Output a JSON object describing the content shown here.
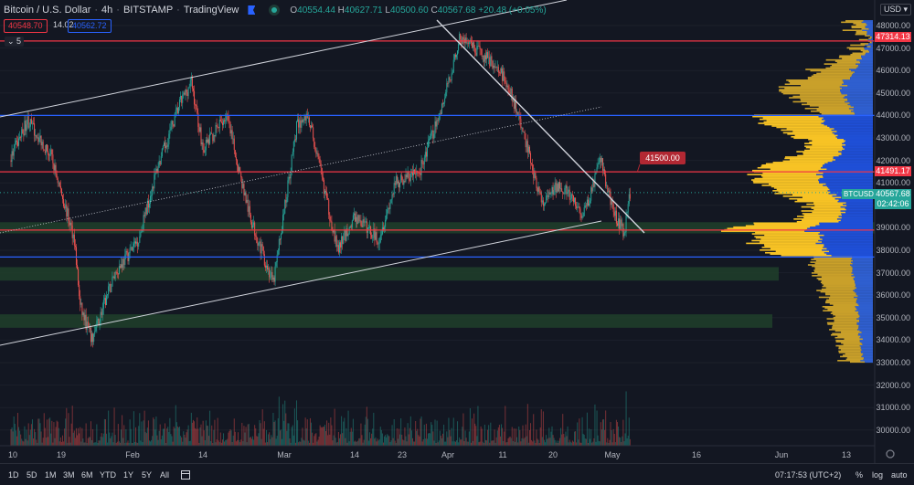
{
  "header": {
    "symbol": "Bitcoin / U.S. Dollar",
    "interval": "4h",
    "exchange": "BITSTAMP",
    "source": "TradingView",
    "ohlc": {
      "o_label": "O",
      "o": "40554.44",
      "h_label": "H",
      "h": "40627.71",
      "l_label": "L",
      "l": "40500.60",
      "c_label": "C",
      "c": "40567.68",
      "change": "+20.48 (+0.05%)"
    },
    "sell_price": "40548.70",
    "spread": "14.02",
    "buy_price": "40562.72",
    "indicators_collapse": "⌄ 5"
  },
  "price_axis": {
    "currency": "USD ▾",
    "labels": [
      "48000.00",
      "47000.00",
      "46000.00",
      "45000.00",
      "44000.00",
      "43000.00",
      "42000.00",
      "41000.00",
      "39000.00",
      "38000.00",
      "37000.00",
      "36000.00",
      "35000.00",
      "34000.00",
      "33000.00",
      "32000.00",
      "31000.00",
      "30000.00"
    ],
    "tags": {
      "resistance_top": "47314.13",
      "resistance_mid": "41491.17",
      "last_price": "40567.68",
      "countdown": "02:42:06"
    },
    "symbol_tag": "BTCUSD"
  },
  "annotation": {
    "target_label": "41500.00"
  },
  "time_axis": [
    "10",
    "19",
    "Feb",
    "14",
    "Mar",
    "14",
    "23",
    "Apr",
    "11",
    "20",
    "May",
    "16",
    "Jun",
    "13"
  ],
  "bottom_bar": {
    "ranges": [
      "1D",
      "5D",
      "1M",
      "3M",
      "6M",
      "YTD",
      "1Y",
      "5Y",
      "All"
    ],
    "clock": "07:17:53 (UTC+2)",
    "percent": "%",
    "log": "log",
    "auto": "auto"
  },
  "colors": {
    "background": "#131722",
    "up": "#26a69a",
    "down": "#ef5350",
    "red_line": "#f23645",
    "blue_line": "#2962ff",
    "zone": "#1f3d2a",
    "profile_up": "#f7c325",
    "profile_down": "#1f4fd6"
  },
  "chart_data": {
    "type": "candlestick",
    "timeframe": "4h",
    "price_range": [
      29500,
      48600
    ],
    "horizontal_levels": [
      47314.13,
      44000,
      41491.17,
      38900,
      37700
    ],
    "support_zones": [
      [
        38750,
        39250
      ],
      [
        36650,
        37250
      ],
      [
        34550,
        35150
      ]
    ],
    "approx_path": [
      [
        "Jan 10",
        42000
      ],
      [
        "Jan 13",
        43800
      ],
      [
        "Jan 17",
        42200
      ],
      [
        "Jan 21",
        38500
      ],
      [
        "Jan 22",
        35500
      ],
      [
        "Jan 24",
        34000
      ],
      [
        "Jan 28",
        37000
      ],
      [
        "Feb 1",
        38500
      ],
      [
        "Feb 4",
        41500
      ],
      [
        "Feb 8",
        44500
      ],
      [
        "Feb 10",
        45500
      ],
      [
        "Feb 12",
        42500
      ],
      [
        "Feb 16",
        44000
      ],
      [
        "Feb 20",
        39500
      ],
      [
        "Feb 24",
        36500
      ],
      [
        "Feb 28",
        43500
      ],
      [
        "Mar 2",
        44000
      ],
      [
        "Mar 7",
        38000
      ],
      [
        "Mar 10",
        39500
      ],
      [
        "Mar 14",
        38500
      ],
      [
        "Mar 17",
        41000
      ],
      [
        "Mar 21",
        41500
      ],
      [
        "Mar 25",
        44500
      ],
      [
        "Mar 28",
        47500
      ],
      [
        "Mar 30",
        47000
      ],
      [
        "Apr 2",
        46500
      ],
      [
        "Apr 5",
        45500
      ],
      [
        "Apr 8",
        43000
      ],
      [
        "Apr 11",
        40000
      ],
      [
        "Apr 14",
        41000
      ],
      [
        "Apr 18",
        39500
      ],
      [
        "Apr 21",
        42000
      ],
      [
        "Apr 23",
        39800
      ],
      [
        "Apr 25",
        38800
      ],
      [
        "Apr 26",
        40567.68
      ]
    ]
  }
}
